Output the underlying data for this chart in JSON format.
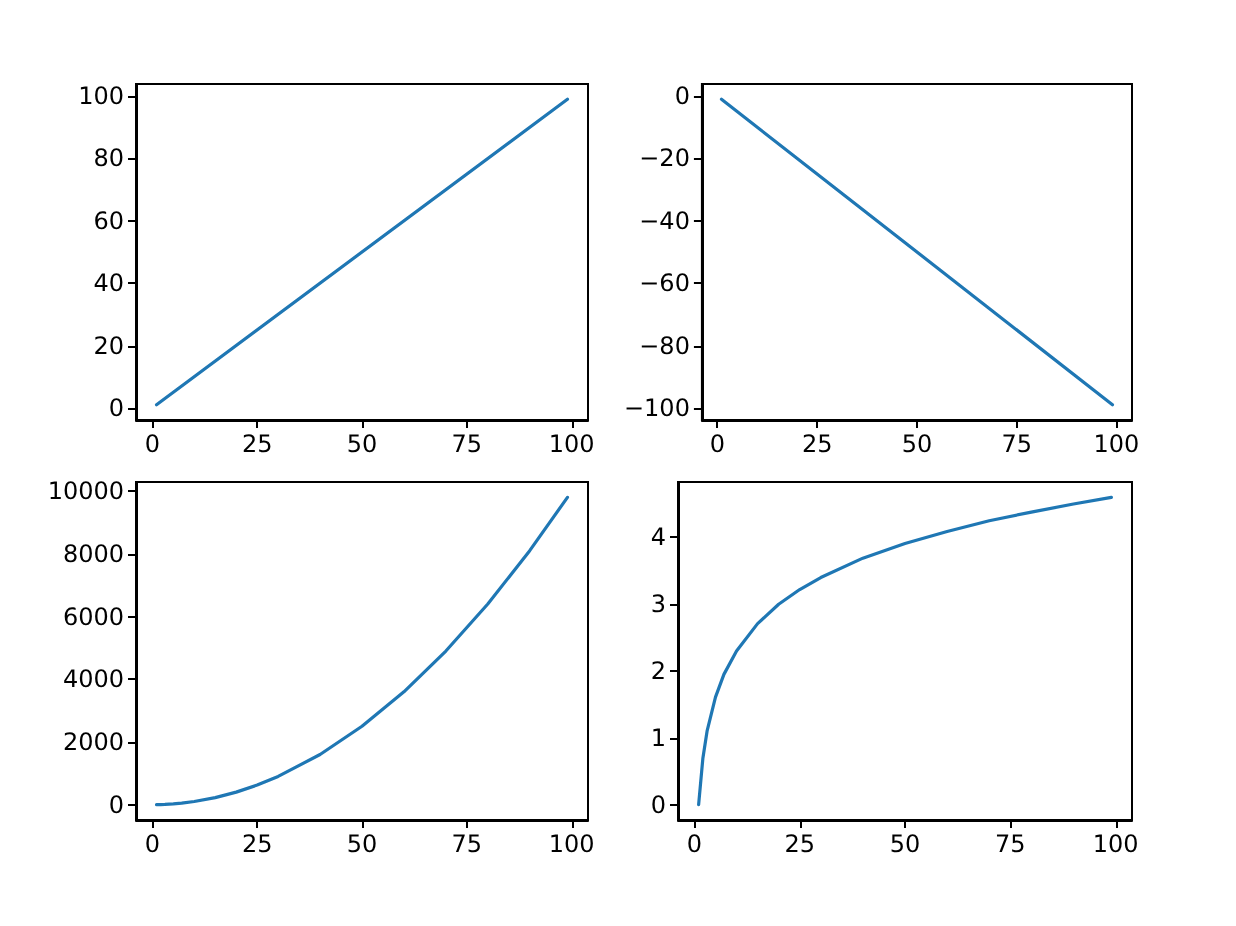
{
  "chart_data": [
    {
      "type": "line",
      "x": [
        1,
        99
      ],
      "series": [
        {
          "color": "#1f77b4",
          "values": [
            1,
            99
          ]
        }
      ],
      "xlim": [
        -3.9,
        103.9
      ],
      "ylim": [
        -3.9,
        103.9
      ],
      "xticks": [
        0,
        25,
        50,
        75,
        100
      ],
      "yticks": [
        0,
        20,
        40,
        60,
        80,
        100
      ],
      "grid": false
    },
    {
      "type": "line",
      "x": [
        1,
        99
      ],
      "series": [
        {
          "color": "#1f77b4",
          "values": [
            -1,
            -99
          ]
        }
      ],
      "xlim": [
        -3.9,
        103.9
      ],
      "ylim": [
        -103.9,
        3.9
      ],
      "xticks": [
        0,
        25,
        50,
        75,
        100
      ],
      "yticks": [
        {
          "value": -100,
          "label": "−100"
        },
        {
          "value": -80,
          "label": "−80"
        },
        {
          "value": -60,
          "label": "−60"
        },
        {
          "value": -40,
          "label": "−40"
        },
        {
          "value": -20,
          "label": "−20"
        },
        0
      ],
      "grid": false
    },
    {
      "type": "line",
      "x": [
        1,
        2,
        3,
        5,
        7,
        10,
        15,
        20,
        25,
        30,
        40,
        50,
        60,
        70,
        80,
        90,
        99
      ],
      "series": [
        {
          "color": "#1f77b4",
          "values": [
            1,
            4,
            9,
            25,
            49,
            100,
            225,
            400,
            625,
            900,
            1600,
            2500,
            3600,
            4900,
            6400,
            8100,
            9801
          ]
        }
      ],
      "xlim": [
        -3.9,
        103.9
      ],
      "ylim": [
        -489,
        10291
      ],
      "xticks": [
        0,
        25,
        50,
        75,
        100
      ],
      "yticks": [
        0,
        2000,
        4000,
        6000,
        8000,
        10000
      ],
      "grid": false
    },
    {
      "type": "line",
      "x": [
        1,
        2,
        3,
        5,
        7,
        10,
        15,
        20,
        25,
        30,
        40,
        50,
        60,
        70,
        80,
        90,
        99
      ],
      "series": [
        {
          "color": "#1f77b4",
          "values": [
            0,
            0.69,
            1.1,
            1.61,
            1.95,
            2.3,
            2.71,
            3.0,
            3.22,
            3.4,
            3.69,
            3.91,
            4.09,
            4.25,
            4.38,
            4.5,
            4.6
          ]
        }
      ],
      "xlim": [
        -3.9,
        103.9
      ],
      "ylim": [
        -0.23,
        4.83
      ],
      "xticks": [
        0,
        25,
        50,
        75,
        100
      ],
      "yticks": [
        0,
        1,
        2,
        3,
        4
      ],
      "grid": false
    }
  ]
}
